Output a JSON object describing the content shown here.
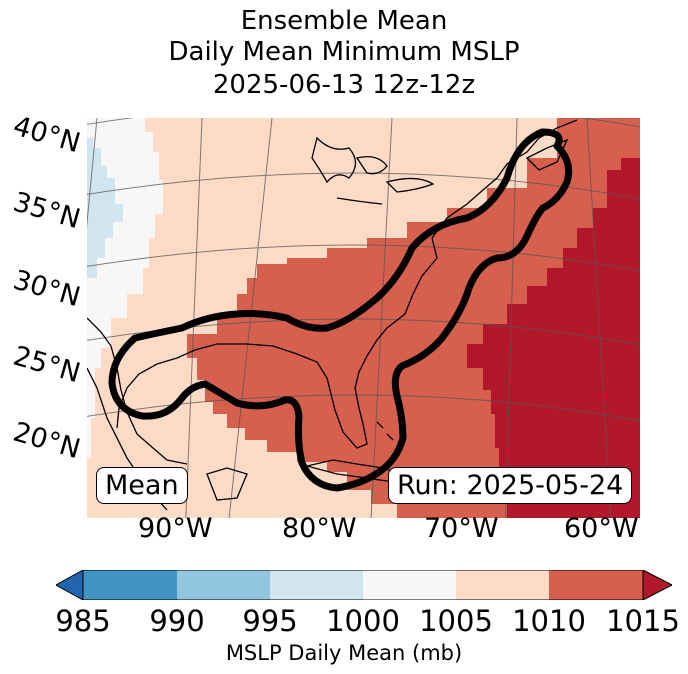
{
  "title": {
    "line1": "Ensemble Mean",
    "line2": "Daily Mean Minimum MSLP",
    "line3": "2025-06-13 12z-12z"
  },
  "lat_labels": [
    "40°N",
    "35°N",
    "30°N",
    "25°N",
    "20°N"
  ],
  "lon_labels": [
    "90°W",
    "80°W",
    "70°W",
    "60°W"
  ],
  "badges": {
    "left": "Mean",
    "right": "Run: 2025-05-24"
  },
  "colorbar": {
    "ticks": [
      "985",
      "990",
      "995",
      "1000",
      "1005",
      "1010",
      "1015"
    ],
    "label": "MSLP Daily Mean (mb)",
    "colors": [
      "#2166ac",
      "#4393c3",
      "#92c5de",
      "#d1e5f0",
      "#f7f7f7",
      "#fddbc7",
      "#d6604d",
      "#b2182b"
    ]
  },
  "colors": {
    "band_1000_1005": "#f7f7f7",
    "band_995_1000": "#d1e5f0",
    "band_1005_1010": "#fddbc7",
    "band_1010_1015": "#d6604d",
    "band_above_1015": "#b2182b",
    "contour": "#000000"
  }
}
